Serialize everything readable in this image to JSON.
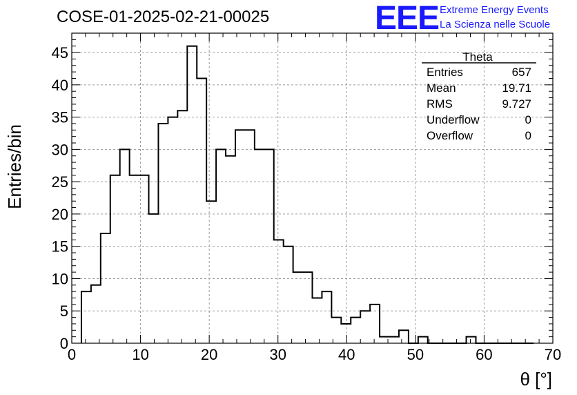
{
  "header": {
    "title": "COSE-01-2025-02-21-00025",
    "logo": "EEE",
    "logo_line1": "Extreme Energy Events",
    "logo_line2": "La Scienza nelle Scuole",
    "logo_color": "#1a1aff"
  },
  "stats": {
    "name": "Theta",
    "rows": [
      {
        "label": "Entries",
        "value": "657"
      },
      {
        "label": "Mean",
        "value": "19.71"
      },
      {
        "label": "RMS",
        "value": "9.727"
      },
      {
        "label": "Underflow",
        "value": "0"
      },
      {
        "label": "Overflow",
        "value": "0"
      }
    ]
  },
  "chart_data": {
    "type": "bar",
    "style": "step-histogram",
    "title": "COSE-01-2025-02-21-00025",
    "xlabel": "θ [°]",
    "ylabel": "Entries/bin",
    "xlim": [
      0,
      70
    ],
    "ylim": [
      0,
      48
    ],
    "grid": true,
    "bin_width": 1.4,
    "x_start": 1.4,
    "values": [
      8,
      9,
      17,
      26,
      30,
      26,
      26,
      20,
      34,
      35,
      36,
      46,
      41,
      22,
      30,
      29,
      33,
      33,
      30,
      30,
      16,
      15,
      11,
      11,
      7,
      8,
      4,
      3,
      4,
      5,
      6,
      1,
      1,
      2,
      0,
      1,
      0,
      0,
      0,
      0,
      1,
      0,
      0,
      0,
      0,
      0,
      0
    ],
    "xticks": [
      0,
      10,
      20,
      30,
      40,
      50,
      60,
      70
    ],
    "yticks": [
      0,
      5,
      10,
      15,
      20,
      25,
      30,
      35,
      40,
      45
    ],
    "line_color": "#000000"
  }
}
